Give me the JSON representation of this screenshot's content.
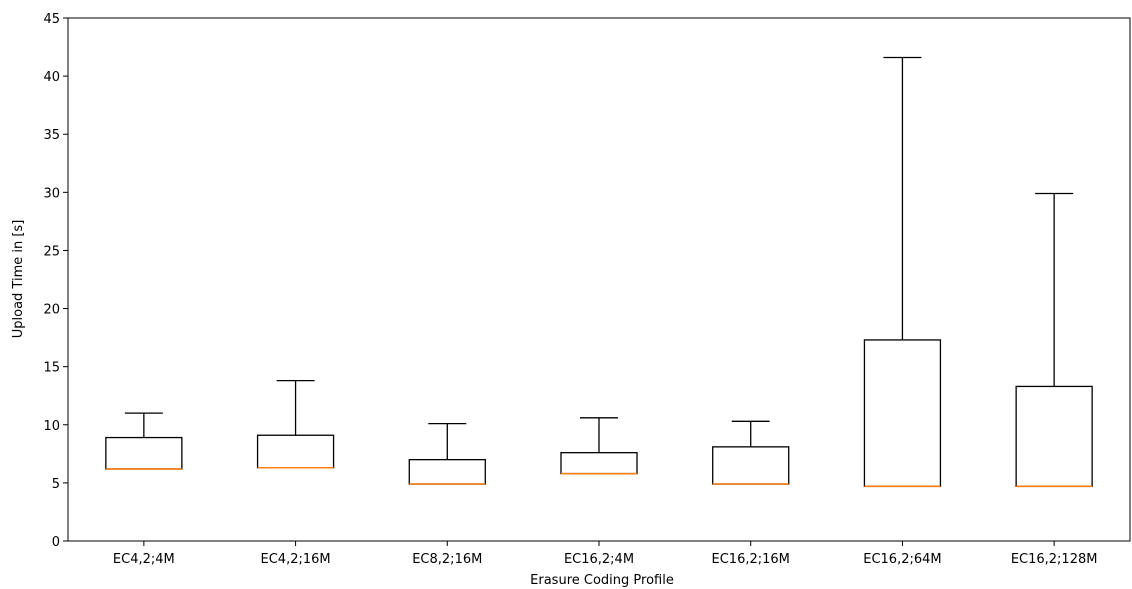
{
  "chart_data": {
    "type": "box",
    "title": "",
    "xlabel": "Erasure Coding Profile",
    "ylabel": "Upload Time in [s]",
    "ylim": [
      0,
      45
    ],
    "yticks": [
      0,
      5,
      10,
      15,
      20,
      25,
      30,
      35,
      40,
      45
    ],
    "grid": false,
    "categories": [
      "EC4,2;4M",
      "EC4,2;16M",
      "EC8,2;16M",
      "EC16,2;4M",
      "EC16,2;16M",
      "EC16,2;64M",
      "EC16,2;128M"
    ],
    "boxes": [
      {
        "category": "EC4,2;4M",
        "whisker_low": 6.2,
        "q1": 6.2,
        "median": 6.2,
        "q3": 8.9,
        "whisker_high": 11.0
      },
      {
        "category": "EC4,2;16M",
        "whisker_low": 6.3,
        "q1": 6.3,
        "median": 6.3,
        "q3": 9.1,
        "whisker_high": 13.8
      },
      {
        "category": "EC8,2;16M",
        "whisker_low": 4.9,
        "q1": 4.9,
        "median": 4.9,
        "q3": 7.0,
        "whisker_high": 10.1
      },
      {
        "category": "EC16,2;4M",
        "whisker_low": 5.8,
        "q1": 5.8,
        "median": 5.8,
        "q3": 7.6,
        "whisker_high": 10.6
      },
      {
        "category": "EC16,2;16M",
        "whisker_low": 4.9,
        "q1": 4.9,
        "median": 4.9,
        "q3": 8.1,
        "whisker_high": 10.3
      },
      {
        "category": "EC16,2;64M",
        "whisker_low": 4.7,
        "q1": 4.7,
        "median": 4.7,
        "q3": 17.3,
        "whisker_high": 41.6
      },
      {
        "category": "EC16,2;128M",
        "whisker_low": 4.7,
        "q1": 4.7,
        "median": 4.7,
        "q3": 13.3,
        "whisker_high": 29.9
      }
    ],
    "colors": {
      "box": "#000000",
      "median": "#ff7f0e",
      "axis": "#000000",
      "text": "#000000"
    }
  }
}
